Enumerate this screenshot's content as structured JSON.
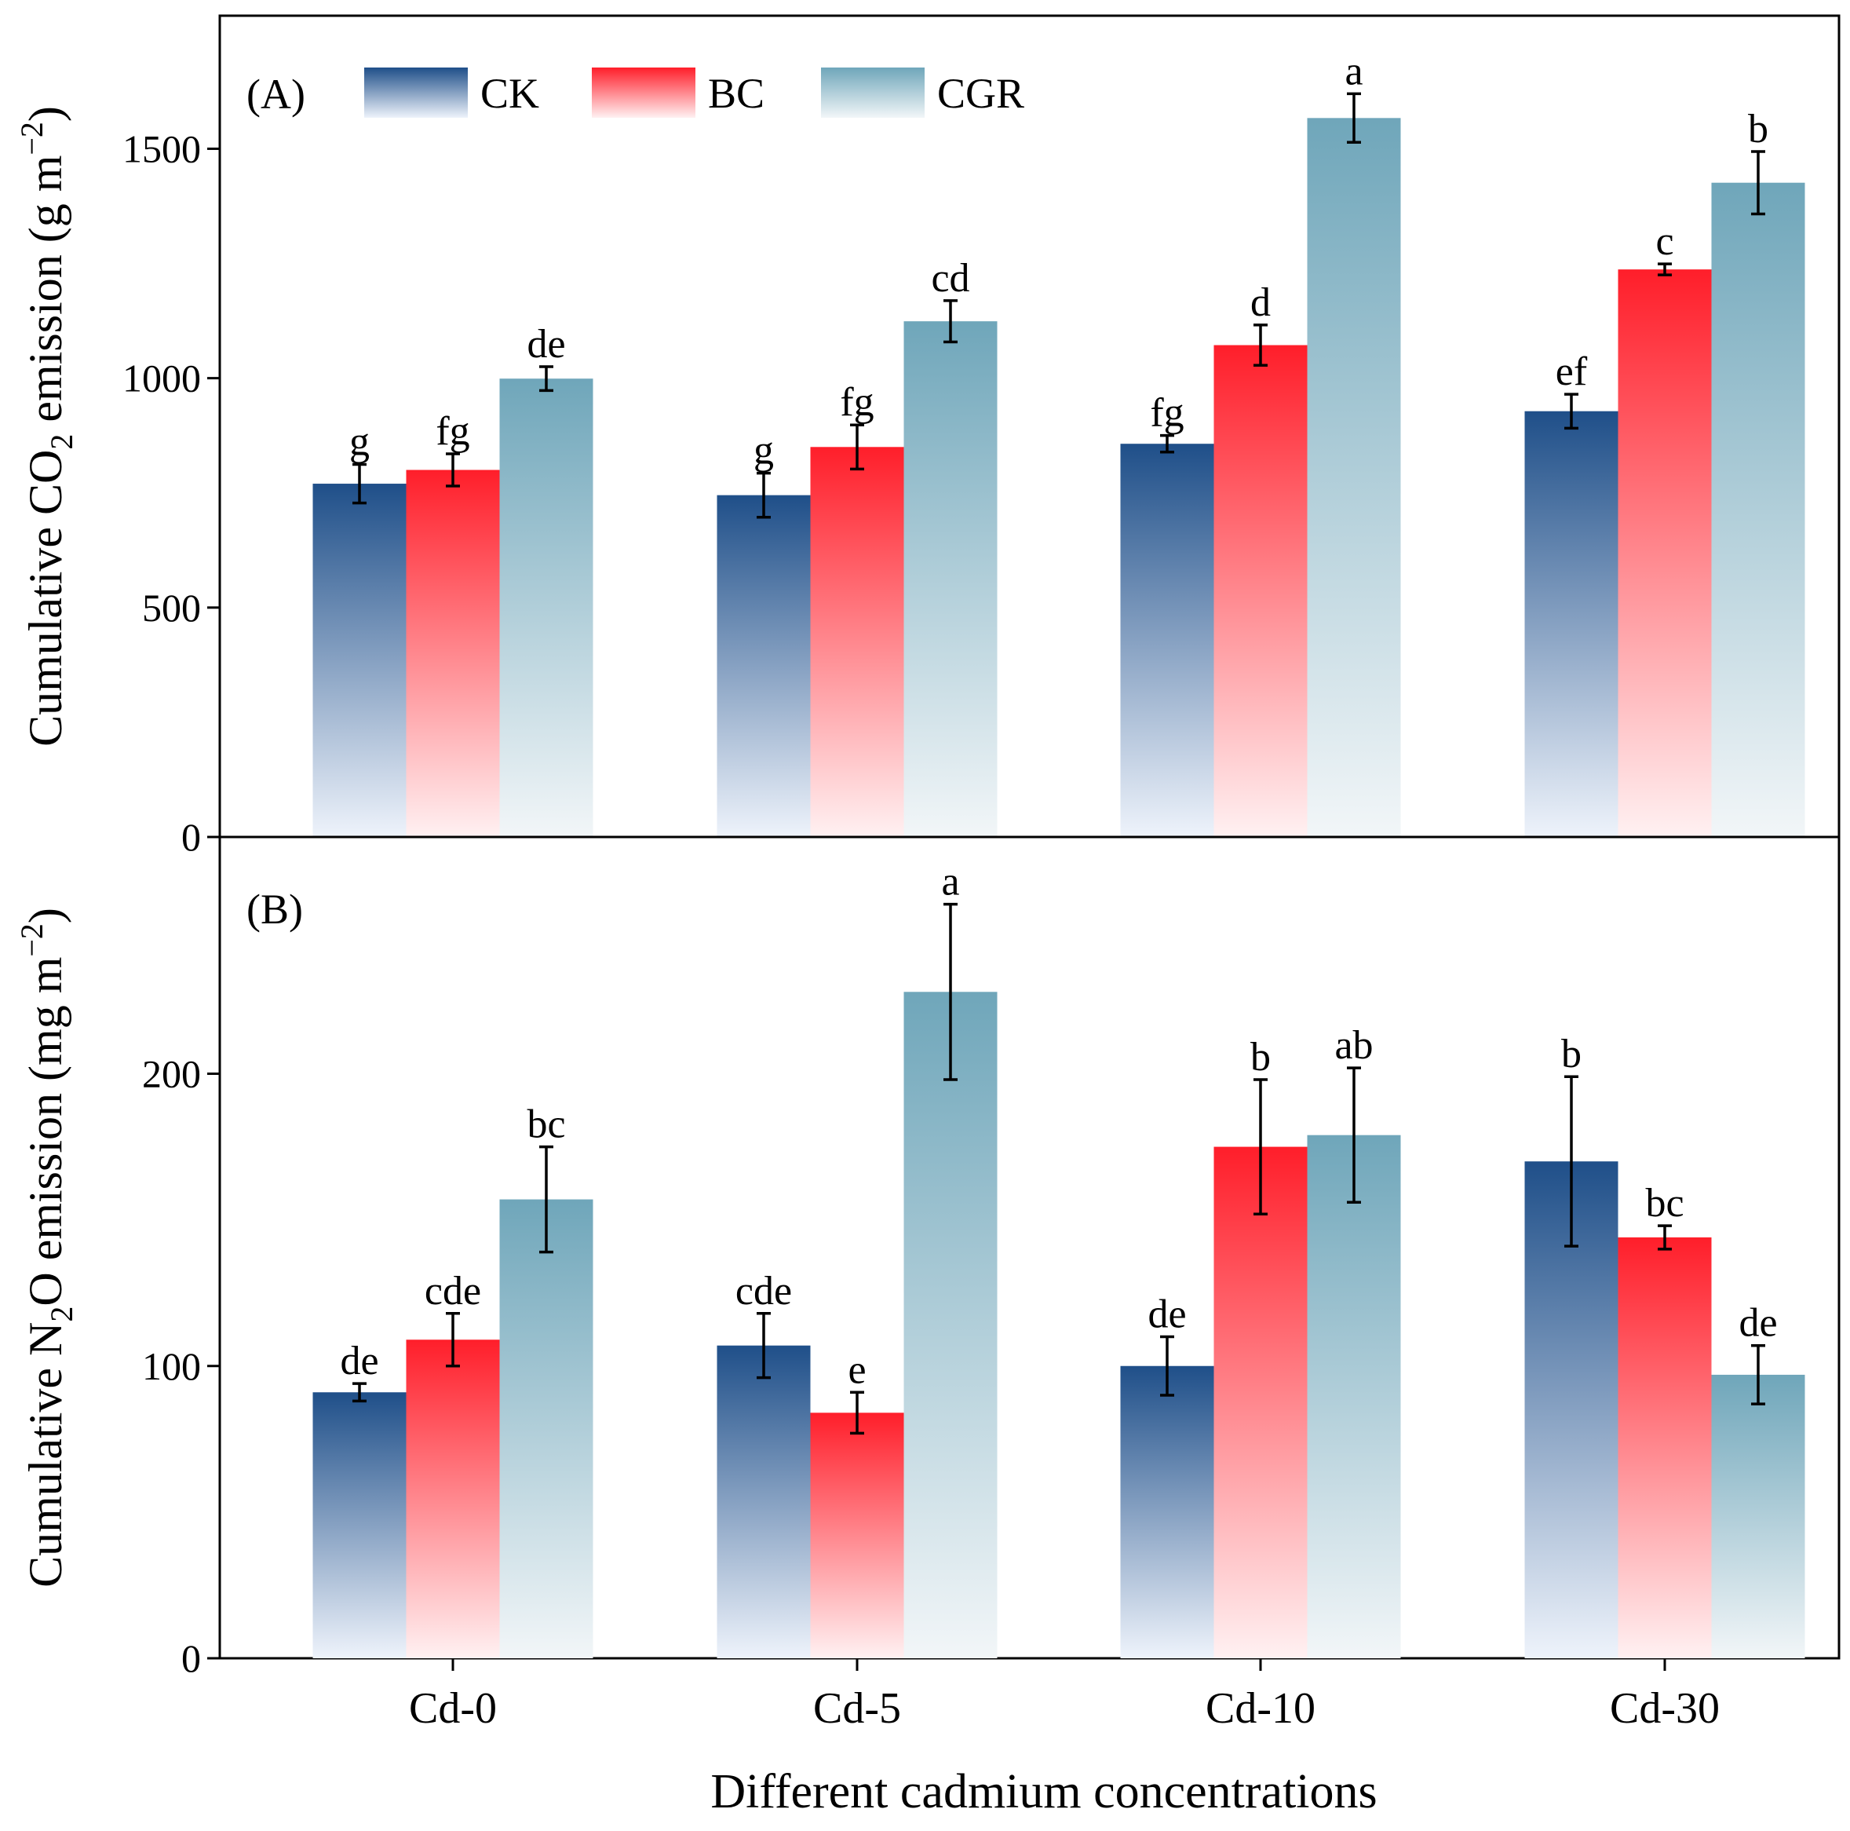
{
  "chart_data": {
    "type": "bar",
    "xlabel": "Different cadmium concentrations",
    "categories": [
      "Cd-0",
      "Cd-5",
      "Cd-10",
      "Cd-30"
    ],
    "legend": [
      {
        "name": "CK",
        "color": "#2a5a90"
      },
      {
        "name": "BC",
        "color": "#ff1e2a"
      },
      {
        "name": "CGR",
        "color": "#74aabd"
      }
    ],
    "panels": [
      {
        "label": "(A)",
        "ylabel": {
          "pre": "Cumulative CO",
          "sub": "2",
          "post": " emission (g m",
          "sup": "−2",
          "end": ")"
        },
        "ylim": [
          0,
          1790
        ],
        "yticks": [
          0,
          500,
          1000,
          1500
        ],
        "series": [
          {
            "name": "CK",
            "values": [
              770,
              745,
              857,
              928
            ],
            "errors": [
              42,
              48,
              18,
              37
            ],
            "letters": [
              "g",
              "g",
              "fg",
              "ef"
            ]
          },
          {
            "name": "BC",
            "values": [
              800,
              850,
              1072,
              1237
            ],
            "errors": [
              35,
              48,
              44,
              12
            ],
            "letters": [
              "fg",
              "fg",
              "d",
              "c"
            ]
          },
          {
            "name": "CGR",
            "values": [
              999,
              1124,
              1567,
              1426
            ],
            "errors": [
              26,
              45,
              53,
              68
            ],
            "letters": [
              "de",
              "cd",
              "a",
              "b"
            ]
          }
        ]
      },
      {
        "label": "(B)",
        "ylabel": {
          "pre": "Cumulative N",
          "sub": "2",
          "post": "O emission (mg m",
          "sup": "−2",
          "end": ")"
        },
        "ylim": [
          0,
          281
        ],
        "yticks": [
          0,
          100,
          200
        ],
        "series": [
          {
            "name": "CK",
            "values": [
              91,
              107,
              100,
              170
            ],
            "errors": [
              3,
              11,
              10,
              29
            ],
            "letters": [
              "de",
              "cde",
              "de",
              "b"
            ]
          },
          {
            "name": "BC",
            "values": [
              109,
              84,
              175,
              144
            ],
            "errors": [
              9,
              7,
              23,
              4
            ],
            "letters": [
              "cde",
              "e",
              "b",
              "bc"
            ]
          },
          {
            "name": "CGR",
            "values": [
              157,
              228,
              179,
              97
            ],
            "errors": [
              18,
              30,
              23,
              10
            ],
            "letters": [
              "bc",
              "a",
              "ab",
              "de"
            ]
          }
        ]
      }
    ]
  }
}
